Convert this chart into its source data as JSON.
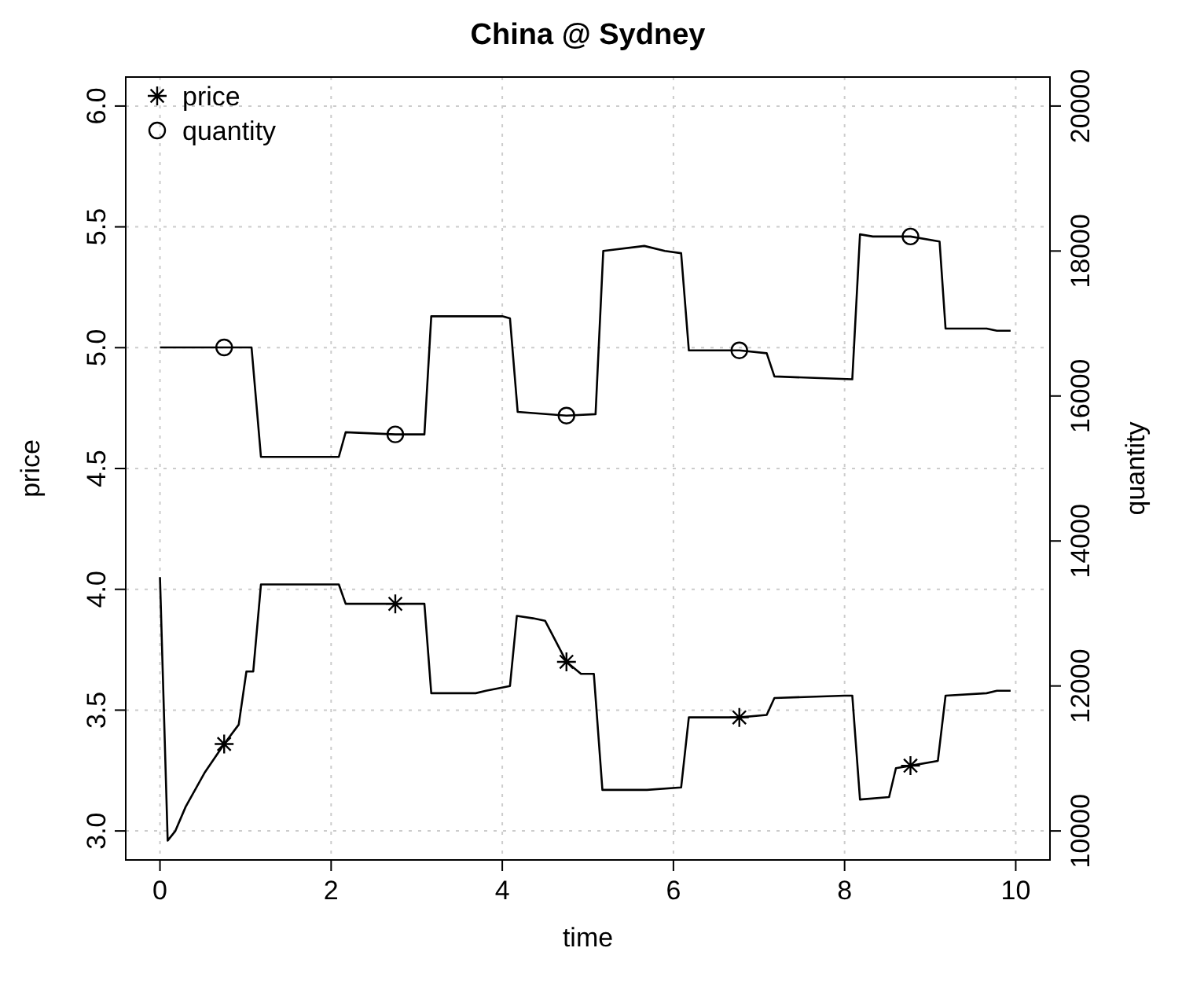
{
  "chart_data": {
    "type": "line",
    "title": "China @ Sydney",
    "xlabel": "time",
    "ylabel": "price",
    "y2label": "quantity",
    "xlim": [
      -0.4,
      10.4
    ],
    "xticks": [
      0,
      2,
      4,
      6,
      8,
      10
    ],
    "ylim": [
      2.88,
      6.12
    ],
    "yticks": [
      {
        "value": 3,
        "label": "3.0"
      },
      {
        "value": 3.5,
        "label": "3.5"
      },
      {
        "value": 4,
        "label": "4.0"
      },
      {
        "value": 4.5,
        "label": "4.5"
      },
      {
        "value": 5,
        "label": "5.0"
      },
      {
        "value": 5.5,
        "label": "5.5"
      },
      {
        "value": 6,
        "label": "6.0"
      }
    ],
    "y2lim": [
      9600,
      20400
    ],
    "y2ticks": [
      10000,
      12000,
      14000,
      16000,
      18000,
      20000
    ],
    "grid": true,
    "legend": "top left",
    "line_style": "solid",
    "series": [
      {
        "color": "#000000",
        "marker": "none",
        "x": [
          0,
          0.09,
          0.18,
          0.3,
          0.52,
          0.75,
          0.92,
          1.01,
          1.09,
          1.18,
          2.09,
          2.17,
          2.75,
          3.09,
          3.17,
          3.69,
          3.81,
          4.09,
          4.17,
          4.36,
          4.5,
          4.75,
          4.92,
          5.07,
          5.17,
          5.69,
          6.09,
          6.18,
          6.77,
          7.09,
          7.18,
          8.0,
          8.09,
          8.18,
          8.52,
          8.6,
          8.77,
          9.09,
          9.18,
          9.66,
          9.78,
          9.94
        ],
        "values": [
          4.05,
          2.96,
          3.0,
          3.1,
          3.24,
          3.36,
          3.44,
          3.66,
          3.66,
          4.02,
          4.02,
          3.94,
          3.94,
          3.94,
          3.57,
          3.57,
          3.58,
          3.6,
          3.89,
          3.88,
          3.87,
          3.7,
          3.65,
          3.65,
          3.17,
          3.17,
          3.18,
          3.47,
          3.47,
          3.48,
          3.55,
          3.56,
          3.56,
          3.13,
          3.14,
          3.26,
          3.27,
          3.29,
          3.56,
          3.57,
          3.58,
          3.58
        ]
      },
      {
        "color": "#000000",
        "marker": "none",
        "axis": "y2",
        "x": [
          0,
          0.75,
          1.07,
          1.18,
          2.09,
          2.17,
          2.75,
          3.09,
          3.17,
          4.0,
          4.09,
          4.18,
          4.75,
          5.09,
          5.18,
          5.66,
          5.9,
          6.09,
          6.18,
          6.77,
          7.09,
          7.18,
          8.09,
          8.18,
          8.33,
          8.77,
          9.11,
          9.18,
          9.66,
          9.78,
          9.94
        ],
        "values": [
          16670,
          16670,
          16670,
          15160,
          15160,
          15500,
          15470,
          15470,
          17100,
          17100,
          17070,
          15780,
          15730,
          15750,
          18000,
          18070,
          18000,
          17970,
          16630,
          16630,
          16590,
          16270,
          16230,
          18230,
          18200,
          18200,
          18130,
          16930,
          16930,
          16900,
          16900
        ]
      },
      {
        "type": "scatter",
        "name": "price",
        "color": "#000000",
        "marker": "cross",
        "x": [
          0.75,
          2.75,
          4.75,
          6.77,
          8.77
        ],
        "values": [
          3.36,
          3.94,
          3.7,
          3.47,
          3.27
        ]
      },
      {
        "type": "scatter",
        "name": "quantity",
        "color": "#000000",
        "marker": "circle",
        "axis": "y2",
        "x": [
          0.75,
          2.75,
          4.75,
          6.77,
          8.77
        ],
        "values": [
          16670,
          15470,
          15730,
          16630,
          18200
        ]
      }
    ]
  }
}
